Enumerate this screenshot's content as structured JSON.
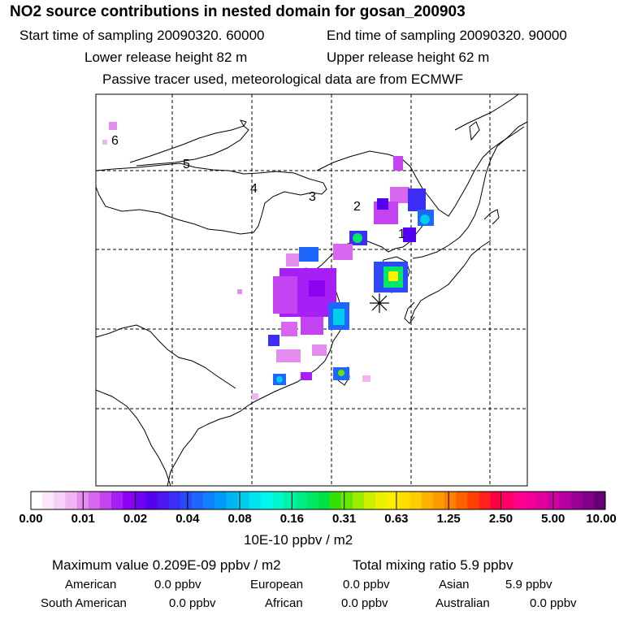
{
  "header": {
    "title": "NO2 source contributions in nested domain for gosan_200903",
    "start_time": "Start time of sampling 20090320. 60000",
    "end_time": "End time of sampling 20090320. 90000",
    "lower_release": "Lower release height   82 m",
    "upper_release": "Upper release height   62 m",
    "note": "Passive tracer used, meteorological data are from ECMWF"
  },
  "map": {
    "station_marker": "receptor-asterisk",
    "region_labels": [
      "1",
      "2",
      "3",
      "4",
      "5",
      "6"
    ]
  },
  "colorbar": {
    "tick_labels": [
      "0.00",
      "0.01",
      "0.02",
      "0.04",
      "0.08",
      "0.16",
      "0.31",
      "0.63",
      "1.25",
      "2.50",
      "5.00",
      "10.00"
    ],
    "unit": "10E-10 ppbv / m2",
    "colors": [
      "#ffffff",
      "#fbe6fb",
      "#f7d0f7",
      "#f0b5f2",
      "#e58cf0",
      "#d866ef",
      "#c544f2",
      "#a81ff5",
      "#8d00f0",
      "#7000f2",
      "#5500f0",
      "#4b17ee",
      "#3d2ef5",
      "#2e49fa",
      "#1f66fa",
      "#1080fa",
      "#0099f7",
      "#00b3f2",
      "#00ccee",
      "#00e5ee",
      "#00f7ee",
      "#00f7cc",
      "#00f2aa",
      "#00ee88",
      "#00e866",
      "#00e244",
      "#33e000",
      "#66e600",
      "#99ee00",
      "#ccf000",
      "#eef000",
      "#fff000",
      "#ffe000",
      "#ffcc00",
      "#ffb300",
      "#ff9900",
      "#ff7f00",
      "#ff6000",
      "#ff4000",
      "#ff2020",
      "#ff0040",
      "#ff0066",
      "#ff008c",
      "#f20099",
      "#e0009e",
      "#cc00a3",
      "#b3009e",
      "#990095",
      "#800088",
      "#660077"
    ]
  },
  "summary": {
    "max_value": "Maximum value  0.209E-09 ppbv / m2",
    "total_mixing": "Total mixing ratio       5.9 ppbv",
    "american_label": "American",
    "american_value": "0.0 ppbv",
    "european_label": "European",
    "european_value": "0.0 ppbv",
    "asian_label": "Asian",
    "asian_value": "5.9 ppbv",
    "south_american_label": "South American",
    "south_american_value": "0.0 ppbv",
    "african_label": "African",
    "african_value": "0.0 ppbv",
    "australian_label": "Australian",
    "australian_value": "0.0 ppbv"
  }
}
